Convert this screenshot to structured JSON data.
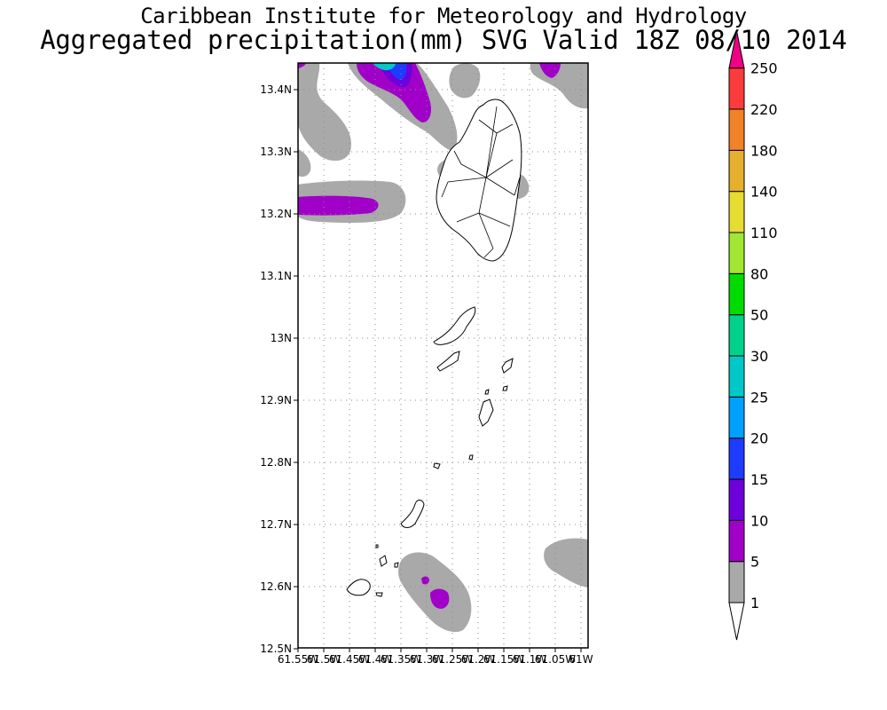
{
  "header": {
    "title": "Caribbean Institute for Meteorology and Hydrology",
    "subtitle": "Aggregated precipitation(mm) SVG Valid 18Z 08/10 2014"
  },
  "map": {
    "lat_labels": [
      "13.4N",
      "13.3N",
      "13.2N",
      "13.1N",
      "13N",
      "12.9N",
      "12.8N",
      "12.7N",
      "12.6N",
      "12.5N"
    ],
    "lon_labels": [
      "61.55W",
      "61.5W",
      "61.45W",
      "61.4W",
      "61.35W",
      "61.3W",
      "61.25W",
      "61.2W",
      "61.15W",
      "61.1W",
      "61.05W",
      "61W"
    ]
  },
  "colorbar": {
    "levels": [
      "1",
      "5",
      "10",
      "15",
      "20",
      "25",
      "30",
      "50",
      "80",
      "110",
      "140",
      "180",
      "220",
      "250"
    ],
    "colors": [
      "#a9a9a9",
      "#a000c8",
      "#6e00dc",
      "#1e3cff",
      "#00a0ff",
      "#00c8c8",
      "#00d28c",
      "#00dc00",
      "#a0e632",
      "#e6dc32",
      "#e6af2d",
      "#f08228",
      "#fa3c3c",
      "#f00082"
    ]
  },
  "precip_colors": {
    "light": "#a9a9a9",
    "moderate": "#a000c8",
    "heavy": "#6e00dc",
    "peak_a": "#1e3cff",
    "peak_b": "#00c8c8"
  }
}
